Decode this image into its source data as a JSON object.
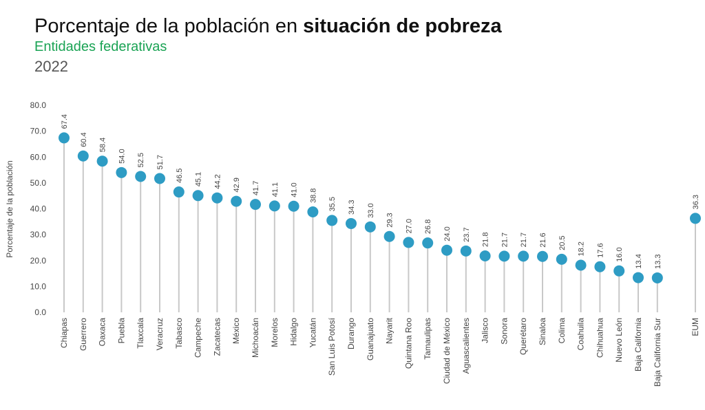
{
  "header": {
    "title_normal": "Porcentaje de la población en ",
    "title_bold": "situación de pobreza",
    "subtitle": "Entidades federativas",
    "year": "2022"
  },
  "colors": {
    "dot": "#2e9cc4",
    "stem": "#c8c8c8",
    "axis_text": "#444444",
    "subtitle": "#1aa354"
  },
  "chart_data": {
    "type": "lollipop",
    "ylabel": "Porcentaje de la población",
    "ylim": [
      0,
      80
    ],
    "yticks": [
      "0.0",
      "10.0",
      "20.0",
      "30.0",
      "40.0",
      "50.0",
      "60.0",
      "70.0",
      "80.0"
    ],
    "grid": false,
    "categories": [
      "Chiapas",
      "Guerrero",
      "Oaxaca",
      "Puebla",
      "Tlaxcala",
      "Veracruz",
      "Tabasco",
      "Campeche",
      "Zacatecas",
      "México",
      "Michoacán",
      "Morelos",
      "Hidalgo",
      "Yucatán",
      "San Luis Potosí",
      "Durango",
      "Guanajuato",
      "Nayarit",
      "Quintana Roo",
      "Tamaulipas",
      "Ciudad de México",
      "Aguascalientes",
      "Jalisco",
      "Sonora",
      "Querétaro",
      "Sinaloa",
      "Colima",
      "Coahuila",
      "Chihuahua",
      "Nuevo León",
      "Baja California",
      "Baja California Sur",
      "EUM"
    ],
    "values": [
      67.4,
      60.4,
      58.4,
      54.0,
      52.5,
      51.7,
      46.5,
      45.1,
      44.2,
      42.9,
      41.7,
      41.1,
      41.0,
      38.8,
      35.5,
      34.3,
      33.0,
      29.3,
      27.0,
      26.8,
      24.0,
      23.7,
      21.8,
      21.7,
      21.7,
      21.6,
      20.5,
      18.2,
      17.6,
      16.0,
      13.4,
      13.3,
      36.3
    ],
    "value_labels": [
      "67.4",
      "60.4",
      "58.4",
      "54.0",
      "52.5",
      "51.7",
      "46.5",
      "45.1",
      "44.2",
      "42.9",
      "41.7",
      "41.1",
      "41.0",
      "38.8",
      "35.5",
      "34.3",
      "33.0",
      "29.3",
      "27.0",
      "26.8",
      "24.0",
      "23.7",
      "21.8",
      "21.7",
      "21.7",
      "21.6",
      "20.5",
      "18.2",
      "17.6",
      "16.0",
      "13.4",
      "13.3",
      "36.3"
    ]
  }
}
